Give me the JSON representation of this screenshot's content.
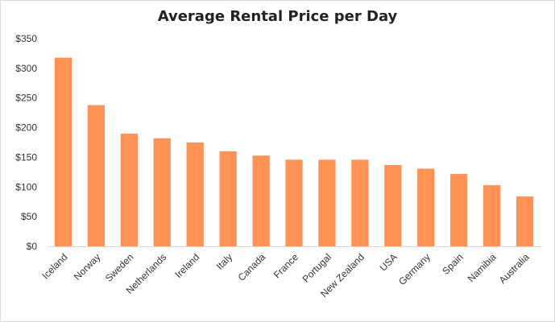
{
  "chart_data": {
    "type": "bar",
    "title": "Average Rental Price per Day",
    "xlabel": "",
    "ylabel": "",
    "categories": [
      "Iceland",
      "Norway",
      "Sweden",
      "Netherlands",
      "Ireland",
      "Italy",
      "Canada",
      "France",
      "Portugal",
      "New Zealand",
      "USA",
      "Germany",
      "Spain",
      "Namibia",
      "Australia"
    ],
    "values": [
      318,
      238,
      190,
      182,
      175,
      160,
      153,
      146,
      146,
      146,
      137,
      131,
      122,
      103,
      84
    ],
    "ylim": [
      0,
      350
    ],
    "yticks": [
      "$0",
      "$50",
      "$100",
      "$150",
      "$200",
      "$250",
      "$300",
      "$350"
    ],
    "grid": false,
    "legend": "none",
    "bar_color": "#FF9356"
  }
}
